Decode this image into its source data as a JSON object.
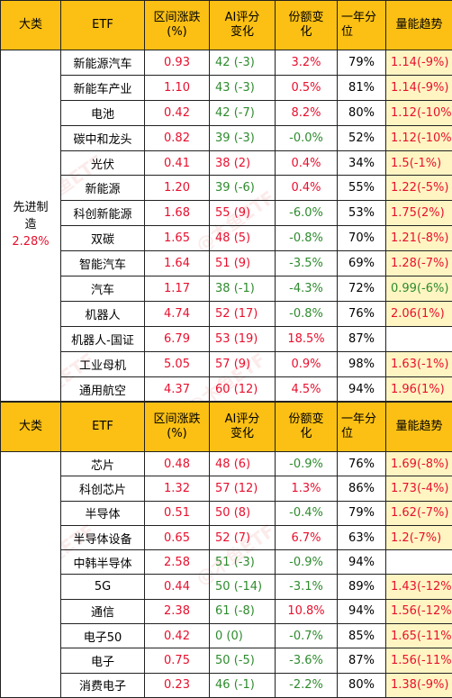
{
  "header": {
    "col1": "大类",
    "col2": "ETF",
    "col3_line1": "区间涨跌",
    "col3_line2": "(%)",
    "col4_line1": "AI评分",
    "col4_line2": "变化",
    "col5_line1": "份额变",
    "col5_line2": "化",
    "col6_line1": "一年分",
    "col6_line2": "位",
    "col7": "量能趋势"
  },
  "watermark": "@木鱼ETF",
  "sections": [
    {
      "category_line1": "先进制",
      "category_line2": "造",
      "category_pct": "2.28%",
      "rows": [
        {
          "name": "新能源汽车",
          "change": "0.93",
          "ai_score": "42",
          "ai_delta": "(-3)",
          "share": "3.2%",
          "percentile": "79%",
          "trend_value": "1.14",
          "trend_delta": "(-9%)"
        },
        {
          "name": "新能车产业",
          "change": "1.10",
          "ai_score": "43",
          "ai_delta": "(-3)",
          "share": "0.5%",
          "percentile": "81%",
          "trend_value": "1.14",
          "trend_delta": "(-9%)"
        },
        {
          "name": "电池",
          "change": "0.42",
          "ai_score": "42",
          "ai_delta": "(-7)",
          "share": "8.2%",
          "percentile": "80%",
          "trend_value": "1.12",
          "trend_delta": "(-10%)"
        },
        {
          "name": "碳中和龙头",
          "change": "0.82",
          "ai_score": "39",
          "ai_delta": "(-3)",
          "share": "-0.0%",
          "percentile": "52%",
          "trend_value": "1.12",
          "trend_delta": "(-10%)"
        },
        {
          "name": "光伏",
          "change": "0.41",
          "ai_score": "38",
          "ai_delta": "(2)",
          "share": "0.4%",
          "percentile": "34%",
          "trend_value": "1.5",
          "trend_delta": "(-1%)"
        },
        {
          "name": "新能源",
          "change": "1.20",
          "ai_score": "39",
          "ai_delta": "(-6)",
          "share": "0.4%",
          "percentile": "55%",
          "trend_value": "1.22",
          "trend_delta": "(-5%)"
        },
        {
          "name": "科创新能源",
          "change": "1.68",
          "ai_score": "55",
          "ai_delta": "(9)",
          "share": "-6.0%",
          "percentile": "53%",
          "trend_value": "1.75",
          "trend_delta": "(2%)"
        },
        {
          "name": "双碳",
          "change": "1.65",
          "ai_score": "48",
          "ai_delta": "(5)",
          "share": "-0.8%",
          "percentile": "70%",
          "trend_value": "1.21",
          "trend_delta": "(-8%)"
        },
        {
          "name": "智能汽车",
          "change": "1.64",
          "ai_score": "51",
          "ai_delta": "(9)",
          "share": "-3.5%",
          "percentile": "69%",
          "trend_value": "1.28",
          "trend_delta": "(-7%)"
        },
        {
          "name": "汽车",
          "change": "1.17",
          "ai_score": "38",
          "ai_delta": "(-1)",
          "share": "-4.3%",
          "percentile": "72%",
          "trend_value": "0.99",
          "trend_delta": "(-6%)"
        },
        {
          "name": "机器人",
          "change": "4.74",
          "ai_score": "52",
          "ai_delta": "(17)",
          "share": "-0.8%",
          "percentile": "76%",
          "trend_value": "2.06",
          "trend_delta": "(1%)"
        },
        {
          "name": "机器人-国证",
          "change": "6.79",
          "ai_score": "53",
          "ai_delta": "(19)",
          "share": "18.5%",
          "percentile": "87%",
          "trend_value": "",
          "trend_delta": ""
        },
        {
          "name": "工业母机",
          "change": "5.05",
          "ai_score": "57",
          "ai_delta": "(9)",
          "share": "0.9%",
          "percentile": "98%",
          "trend_value": "1.63",
          "trend_delta": "(-1%)"
        },
        {
          "name": "通用航空",
          "change": "4.37",
          "ai_score": "60",
          "ai_delta": "(12)",
          "share": "4.5%",
          "percentile": "94%",
          "trend_value": "1.96",
          "trend_delta": "(1%)"
        }
      ]
    },
    {
      "rows": [
        {
          "name": "芯片",
          "change": "0.48",
          "ai_score": "48",
          "ai_delta": "(6)",
          "share": "-0.9%",
          "percentile": "76%",
          "trend_value": "1.69",
          "trend_delta": "(-8%)"
        },
        {
          "name": "科创芯片",
          "change": "1.32",
          "ai_score": "57",
          "ai_delta": "(12)",
          "share": "1.3%",
          "percentile": "86%",
          "trend_value": "1.73",
          "trend_delta": "(-4%)"
        },
        {
          "name": "半导体",
          "change": "0.51",
          "ai_score": "50",
          "ai_delta": "(8)",
          "share": "-0.4%",
          "percentile": "79%",
          "trend_value": "1.62",
          "trend_delta": "(-7%)"
        },
        {
          "name": "半导体设备",
          "change": "0.65",
          "ai_score": "52",
          "ai_delta": "(7)",
          "share": "6.7%",
          "percentile": "63%",
          "trend_value": "1.2",
          "trend_delta": "(-7%)"
        },
        {
          "name": "中韩半导体",
          "change": "2.58",
          "ai_score": "51",
          "ai_delta": "(-3)",
          "share": "-0.9%",
          "percentile": "94%",
          "trend_value": "",
          "trend_delta": ""
        },
        {
          "name": "5G",
          "change": "0.44",
          "ai_score": "50",
          "ai_delta": "(-14)",
          "share": "-3.1%",
          "percentile": "89%",
          "trend_value": "1.43",
          "trend_delta": "(-12%)"
        },
        {
          "name": "通信",
          "change": "2.38",
          "ai_score": "61",
          "ai_delta": "(-8)",
          "share": "10.8%",
          "percentile": "94%",
          "trend_value": "1.56",
          "trend_delta": "(-12%)"
        },
        {
          "name": "电子50",
          "change": "0.42",
          "ai_score": "0",
          "ai_delta": "(0)",
          "share": "-0.7%",
          "percentile": "85%",
          "trend_value": "1.65",
          "trend_delta": "(-11%)"
        },
        {
          "name": "电子",
          "change": "0.75",
          "ai_score": "50",
          "ai_delta": "(-5)",
          "share": "-3.6%",
          "percentile": "87%",
          "trend_value": "1.56",
          "trend_delta": "(-11%)"
        },
        {
          "name": "消费电子",
          "change": "0.23",
          "ai_score": "46",
          "ai_delta": "(-1)",
          "share": "-2.2%",
          "percentile": "80%",
          "trend_value": "1.38",
          "trend_delta": "(-9%)"
        }
      ]
    }
  ],
  "colors": {
    "header_bg": "#FBC013",
    "trend_bg": "#FFF5C2",
    "up": "#E8102E",
    "down": "#2E8B2E"
  }
}
